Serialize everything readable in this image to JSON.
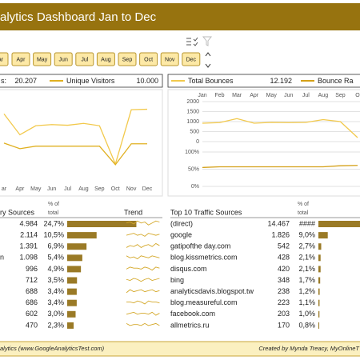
{
  "header": {
    "title": "alytics Dashboard Jan to Dec"
  },
  "months": [
    "ar",
    "Apr",
    "May",
    "Jun",
    "Jul",
    "Aug",
    "Sep",
    "Oct",
    "Nov",
    "Dec"
  ],
  "chart_data": [
    {
      "type": "line",
      "categories": [
        "ar",
        "Apr",
        "May",
        "Jun",
        "Jul",
        "Aug",
        "Sep",
        "Oct",
        "Nov",
        "Dec"
      ],
      "ylim": [
        800,
        2100
      ],
      "series": [
        {
          "name": "s:",
          "total": "20.207",
          "color": "#f2c94c",
          "values": [
            1874,
            1535,
            1682,
            1700,
            1690,
            1720,
            1682,
            1060,
            1942,
            1950
          ]
        },
        {
          "name": "Unique Visitors",
          "total": "10.000",
          "color": "#e0b020",
          "values": [
            1400,
            1309,
            1350,
            1350,
            1350,
            1350,
            1350,
            1049,
            1388,
            1388
          ]
        }
      ]
    },
    {
      "type": "line",
      "categories": [
        "Jan",
        "Feb",
        "Mar",
        "Apr",
        "May",
        "Jun",
        "Jul",
        "Aug",
        "Sep",
        "O"
      ],
      "ylim": [
        0,
        2000
      ],
      "yticks": [
        0,
        500,
        1000,
        1500,
        2000
      ],
      "series": [
        {
          "name": "Total Bounces",
          "total": "12.192",
          "color": "#f2c94c",
          "values": [
            920,
            950,
            1150,
            920,
            960,
            950,
            960,
            1100,
            1000,
            200
          ]
        }
      ]
    },
    {
      "type": "line",
      "categories": [
        "Jan",
        "Feb",
        "Mar",
        "Apr",
        "May",
        "Jun",
        "Jul",
        "Aug",
        "Sep",
        "O"
      ],
      "ylim": [
        0,
        100
      ],
      "yticks": [
        {
          "value": 0,
          "label": "0%"
        },
        {
          "value": 50,
          "label": "50%"
        },
        {
          "value": 100,
          "label": "100%"
        }
      ],
      "series": [
        {
          "name": "Bounce Ra",
          "color": "#d4a017",
          "values": [
            55,
            57,
            57,
            57,
            57,
            57,
            57,
            57,
            60,
            61
          ]
        }
      ]
    }
  ],
  "tables": [
    {
      "title": "ry Sources",
      "pct_header": [
        "% of",
        "total"
      ],
      "trend_header": "Trend",
      "rows": [
        {
          "value": "4.984",
          "pct": {
            "value": 24.7,
            "label": "24,7%"
          },
          "trend": [
            5,
            6,
            4,
            7,
            5,
            6,
            3,
            5,
            7,
            6
          ]
        },
        {
          "value": "2.114",
          "pct": {
            "value": 10.5,
            "label": "10,5%"
          },
          "trend": [
            4,
            5,
            6,
            4,
            5,
            3,
            6,
            5,
            4,
            5
          ]
        },
        {
          "value": "1.391",
          "pct": {
            "value": 6.9,
            "label": "6,9%"
          },
          "trend": [
            3,
            5,
            4,
            6,
            3,
            5,
            6,
            4,
            7,
            5
          ]
        },
        {
          "name": "n",
          "value": "1.098",
          "pct": {
            "value": 5.4,
            "label": "5,4%"
          },
          "trend": [
            6,
            4,
            5,
            3,
            6,
            5,
            4,
            6,
            5,
            4
          ]
        },
        {
          "value": "996",
          "pct": {
            "value": 4.9,
            "label": "4,9%"
          },
          "trend": [
            4,
            6,
            5,
            5,
            4,
            6,
            5,
            3,
            6,
            5
          ]
        },
        {
          "value": "712",
          "pct": {
            "value": 3.5,
            "label": "3,5%"
          },
          "trend": [
            5,
            4,
            6,
            5,
            3,
            5,
            6,
            4,
            5,
            6
          ]
        },
        {
          "value": "688",
          "pct": {
            "value": 3.4,
            "label": "3,4%"
          },
          "trend": [
            3,
            6,
            4,
            5,
            6,
            4,
            5,
            6,
            4,
            5
          ]
        },
        {
          "value": "686",
          "pct": {
            "value": 3.4,
            "label": "3,4%"
          },
          "trend": [
            5,
            5,
            4,
            6,
            5,
            3,
            6,
            5,
            5,
            4
          ]
        },
        {
          "value": "602",
          "pct": {
            "value": 3.0,
            "label": "3,0%"
          },
          "trend": [
            4,
            5,
            6,
            4,
            5,
            5,
            4,
            6,
            3,
            5
          ]
        },
        {
          "value": "470",
          "pct": {
            "value": 2.3,
            "label": "2,3%"
          },
          "trend": [
            6,
            4,
            5,
            5,
            4,
            6,
            4,
            5,
            6,
            4
          ]
        }
      ]
    },
    {
      "title": "Top 10 Traffic Sources",
      "pct_header": [
        "% of",
        "total"
      ],
      "rows": [
        {
          "name": "(direct)",
          "value": "14.467",
          "pct": {
            "value": 71.6,
            "label": "####"
          }
        },
        {
          "name": "google",
          "value": "1.826",
          "pct": {
            "value": 9.0,
            "label": "9,0%"
          }
        },
        {
          "name": "gatipofthe day.com",
          "value": "542",
          "pct": {
            "value": 2.7,
            "label": "2,7%"
          }
        },
        {
          "name": "blog.kissmetrics.com",
          "value": "428",
          "pct": {
            "value": 2.1,
            "label": "2,1%"
          }
        },
        {
          "name": "disqus.com",
          "value": "420",
          "pct": {
            "value": 2.1,
            "label": "2,1%"
          }
        },
        {
          "name": "bing",
          "value": "348",
          "pct": {
            "value": 1.7,
            "label": "1,7%"
          }
        },
        {
          "name": "analyticsdavis.blogspot.tw",
          "value": "238",
          "pct": {
            "value": 1.2,
            "label": "1,2%"
          }
        },
        {
          "name": "blog.measureful.com",
          "value": "223",
          "pct": {
            "value": 1.1,
            "label": "1,1%"
          }
        },
        {
          "name": "facebook.com",
          "value": "203",
          "pct": {
            "value": 1.0,
            "label": "1,0%"
          }
        },
        {
          "name": "allmetrics.ru",
          "value": "170",
          "pct": {
            "value": 0.8,
            "label": "0,8%"
          }
        }
      ]
    }
  ],
  "footer": {
    "left": "alytics (www.GoogleAnalyticsTest.com)",
    "right": "Created by Mynda Treacy, MyOnlineT"
  }
}
